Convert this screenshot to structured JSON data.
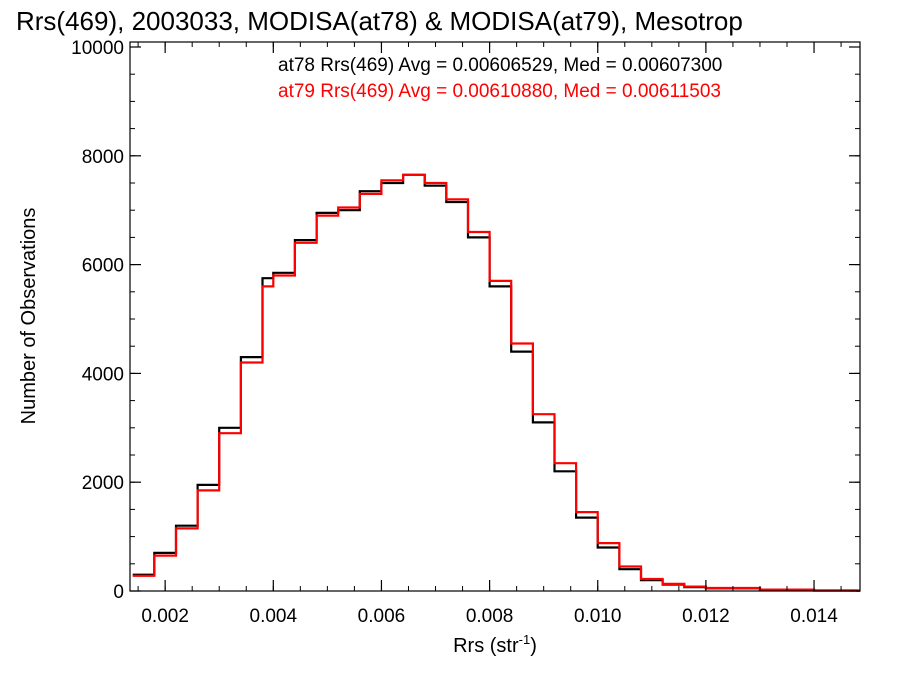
{
  "chart_data": {
    "type": "line",
    "style": "step-histogram",
    "title": "Rrs(469), 2003033, MODISA(at78) & MODISA(at79), Mesotrop",
    "xlabel": "Rrs (str",
    "xlabel_sup": "-1",
    "xlabel_close": ")",
    "ylabel": "Number of Observations",
    "xlim": [
      0.00135,
      0.01485
    ],
    "ylim": [
      0,
      10000
    ],
    "x_ticks": [
      0.002,
      0.004,
      0.006,
      0.008,
      0.01,
      0.012,
      0.014
    ],
    "x_tick_labels": [
      "0.002",
      "0.004",
      "0.006",
      "0.008",
      "0.010",
      "0.012",
      "0.014"
    ],
    "y_ticks": [
      0,
      2000,
      4000,
      6000,
      8000,
      10000
    ],
    "y_tick_labels": [
      "0",
      "2000",
      "4000",
      "6000",
      "8000",
      "10000"
    ],
    "grid": false,
    "series": [
      {
        "name": "at78",
        "color": "#000000",
        "stats": "at78 Rrs(469) Avg = 0.00606529, Med = 0.00607300",
        "x": [
          0.0014,
          0.0018,
          0.0022,
          0.0026,
          0.003,
          0.0034,
          0.0038,
          0.004,
          0.0044,
          0.0048,
          0.0052,
          0.0056,
          0.006,
          0.0064,
          0.0068,
          0.0072,
          0.0076,
          0.008,
          0.0084,
          0.0088,
          0.0092,
          0.0096,
          0.01,
          0.0104,
          0.0108,
          0.0112,
          0.0116,
          0.012,
          0.013,
          0.014,
          0.0148
        ],
        "y": [
          300,
          700,
          1200,
          1950,
          3000,
          4300,
          5750,
          5850,
          6450,
          6950,
          7000,
          7350,
          7500,
          7650,
          7450,
          7150,
          6500,
          5600,
          4400,
          3100,
          2200,
          1350,
          800,
          400,
          200,
          120,
          70,
          50,
          20,
          10,
          5
        ]
      },
      {
        "name": "at79",
        "color": "#ff0000",
        "stats": "at79 Rrs(469) Avg = 0.00610880, Med = 0.00611503",
        "x": [
          0.0014,
          0.0018,
          0.0022,
          0.0026,
          0.003,
          0.0034,
          0.0038,
          0.004,
          0.0044,
          0.0048,
          0.0052,
          0.0056,
          0.006,
          0.0064,
          0.0068,
          0.0072,
          0.0076,
          0.008,
          0.0084,
          0.0088,
          0.0092,
          0.0096,
          0.01,
          0.0104,
          0.0108,
          0.0112,
          0.0116,
          0.012,
          0.013,
          0.014,
          0.0148
        ],
        "y": [
          280,
          650,
          1150,
          1850,
          2900,
          4200,
          5600,
          5800,
          6400,
          6900,
          7050,
          7300,
          7550,
          7650,
          7500,
          7200,
          6600,
          5700,
          4550,
          3250,
          2350,
          1450,
          880,
          450,
          220,
          130,
          80,
          55,
          25,
          10,
          5
        ]
      }
    ]
  }
}
